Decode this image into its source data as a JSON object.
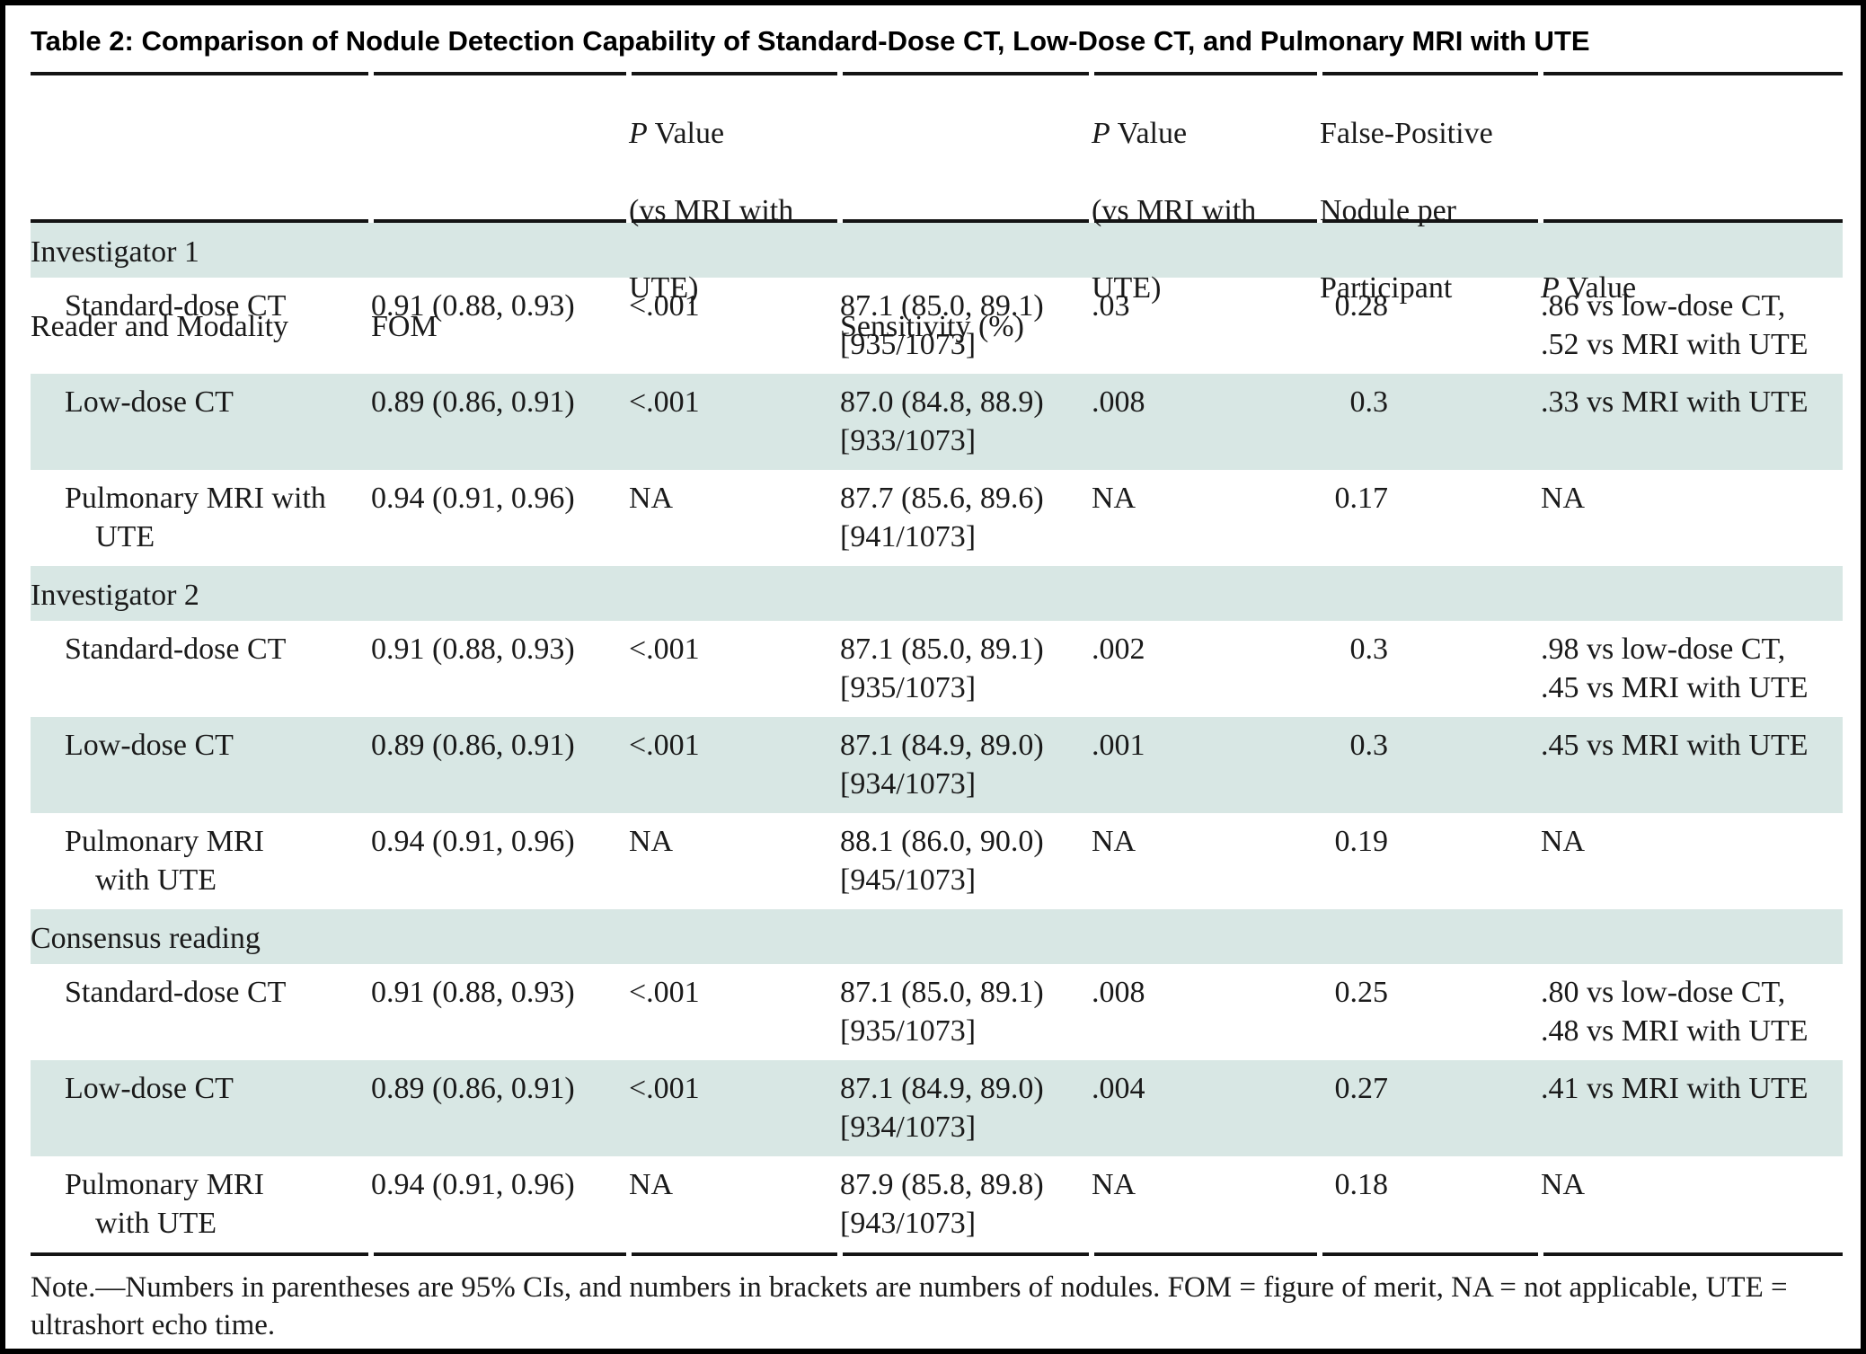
{
  "title": "Table 2: Comparison of Nodule Detection Capability of Standard-Dose CT, Low-Dose CT, and Pulmonary MRI with UTE",
  "colors": {
    "band": "#d8e7e4",
    "rule": "#141414",
    "text": "#1a1a1a"
  },
  "header": {
    "col1": "Reader and Modality",
    "col2": "FOM",
    "col3": {
      "p": "P",
      "p_rest": " Value",
      "line2": "(vs MRI with",
      "line3": "UTE)"
    },
    "col4": "Sensitivity (%)",
    "col5": {
      "p": "P",
      "p_rest": " Value",
      "line2": "(vs MRI with",
      "line3": "UTE)"
    },
    "col6": {
      "line1": "False-Positive",
      "line2": "Nodule per",
      "line3": "Participant"
    },
    "col7": {
      "p": "P",
      "p_rest": " Value"
    }
  },
  "sections": [
    {
      "label": "Investigator 1",
      "rows": [
        {
          "modality": "Standard-dose CT",
          "fom": "0.91 (0.88, 0.93)",
          "p_vs_mri": "<.001",
          "sensitivity": "87.1 (85.0, 89.1)\n[935/1073]",
          "p_vs_mri_sens": ".03",
          "fp_per_participant": "0.28",
          "p_value": ".86 vs low-dose CT,\n.52 vs MRI with UTE"
        },
        {
          "modality": "Low-dose CT",
          "fom": "0.89 (0.86, 0.91)",
          "p_vs_mri": "<.001",
          "sensitivity": "87.0 (84.8, 88.9)\n[933/1073]",
          "p_vs_mri_sens": ".008",
          "fp_per_participant": "0.3",
          "p_value": ".33 vs MRI with UTE"
        },
        {
          "modality": "Pulmonary MRI with\nUTE",
          "fom": "0.94 (0.91, 0.96)",
          "p_vs_mri": "NA",
          "sensitivity": "87.7 (85.6, 89.6)\n[941/1073]",
          "p_vs_mri_sens": "NA",
          "fp_per_participant": "0.17",
          "p_value": "NA"
        }
      ]
    },
    {
      "label": "Investigator 2",
      "rows": [
        {
          "modality": "Standard-dose CT",
          "fom": "0.91 (0.88, 0.93)",
          "p_vs_mri": "<.001",
          "sensitivity": "87.1 (85.0, 89.1)\n[935/1073]",
          "p_vs_mri_sens": ".002",
          "fp_per_participant": "0.3",
          "p_value": ".98 vs low-dose CT,\n.45 vs MRI with UTE"
        },
        {
          "modality": "Low-dose CT",
          "fom": "0.89 (0.86, 0.91)",
          "p_vs_mri": "<.001",
          "sensitivity": "87.1 (84.9, 89.0)\n[934/1073]",
          "p_vs_mri_sens": ".001",
          "fp_per_participant": "0.3",
          "p_value": ".45 vs MRI with UTE"
        },
        {
          "modality": "Pulmonary MRI\nwith UTE",
          "fom": "0.94 (0.91, 0.96)",
          "p_vs_mri": "NA",
          "sensitivity": "88.1 (86.0, 90.0)\n[945/1073]",
          "p_vs_mri_sens": "NA",
          "fp_per_participant": "0.19",
          "p_value": "NA"
        }
      ]
    },
    {
      "label": "Consensus reading",
      "rows": [
        {
          "modality": "Standard-dose CT",
          "fom": "0.91 (0.88, 0.93)",
          "p_vs_mri": "<.001",
          "sensitivity": "87.1 (85.0, 89.1)\n[935/1073]",
          "p_vs_mri_sens": ".008",
          "fp_per_participant": "0.25",
          "p_value": ".80 vs low-dose CT,\n.48 vs MRI with UTE"
        },
        {
          "modality": "Low-dose CT",
          "fom": "0.89 (0.86, 0.91)",
          "p_vs_mri": "<.001",
          "sensitivity": "87.1 (84.9, 89.0)\n[934/1073]",
          "p_vs_mri_sens": ".004",
          "fp_per_participant": "0.27",
          "p_value": ".41 vs MRI with UTE"
        },
        {
          "modality": "Pulmonary MRI\nwith UTE",
          "fom": "0.94 (0.91, 0.96)",
          "p_vs_mri": "NA",
          "sensitivity": "87.9 (85.8, 89.8)\n[943/1073]",
          "p_vs_mri_sens": "NA",
          "fp_per_participant": "0.18",
          "p_value": "NA"
        }
      ]
    }
  ],
  "footnote": "Note.—Numbers in parentheses are 95% CIs, and numbers in brackets are numbers of nodules. FOM = figure of merit, NA = not applicable, UTE = ultrashort echo time."
}
